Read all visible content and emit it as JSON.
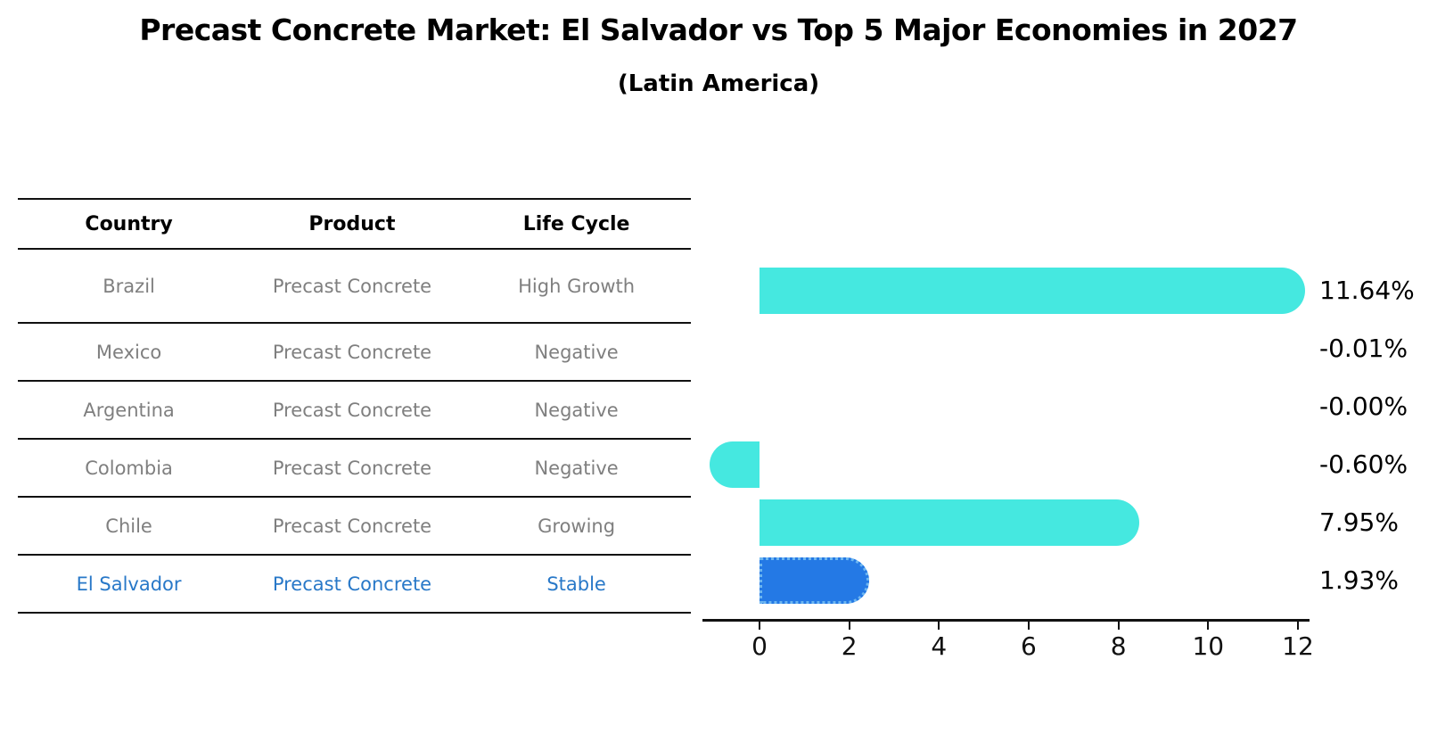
{
  "title": "Precast Concrete Market: El Salvador vs Top 5 Major Economies in 2027",
  "subtitle": "(Latin America)",
  "table": {
    "headers": [
      "Country",
      "Product",
      "Life Cycle"
    ],
    "rows": [
      {
        "country": "Brazil",
        "product": "Precast Concrete",
        "life_cycle": "High Growth",
        "highlighted": false
      },
      {
        "country": "Mexico",
        "product": "Precast Concrete",
        "life_cycle": "Negative",
        "highlighted": false
      },
      {
        "country": "Argentina",
        "product": "Precast Concrete",
        "life_cycle": "Negative",
        "highlighted": false
      },
      {
        "country": "Colombia",
        "product": "Precast Concrete",
        "life_cycle": "Negative",
        "highlighted": false
      },
      {
        "country": "Chile",
        "product": "Precast Concrete",
        "life_cycle": "Growing",
        "highlighted": false
      },
      {
        "country": "El Salvador",
        "product": "Precast Concrete",
        "life_cycle": "Stable",
        "highlighted": true
      }
    ]
  },
  "chart_data": {
    "type": "bar",
    "orientation": "horizontal",
    "categories": [
      "Brazil",
      "Mexico",
      "Argentina",
      "Colombia",
      "Chile",
      "El Salvador"
    ],
    "values": [
      11.64,
      -0.01,
      -0.0,
      -0.6,
      7.95,
      1.93
    ],
    "value_labels": [
      "11.64%",
      "-0.01%",
      "-0.00%",
      "-0.60%",
      "7.95%",
      "1.93%"
    ],
    "xticks": [
      0,
      2,
      4,
      6,
      8,
      10,
      12
    ],
    "xlim": [
      -1.3,
      12.3
    ],
    "highlight_index": 5,
    "grid": false,
    "legend": false,
    "title": "Precast Concrete Market: El Salvador vs Top 5 Major Economies in 2027",
    "xlabel": "",
    "ylabel": ""
  },
  "colors": {
    "bar_default": "#45E8E0",
    "bar_highlight": "#2479E5",
    "highlight_text": "#2878C8",
    "table_text": "#7F7F7F",
    "axis": "#111111"
  }
}
